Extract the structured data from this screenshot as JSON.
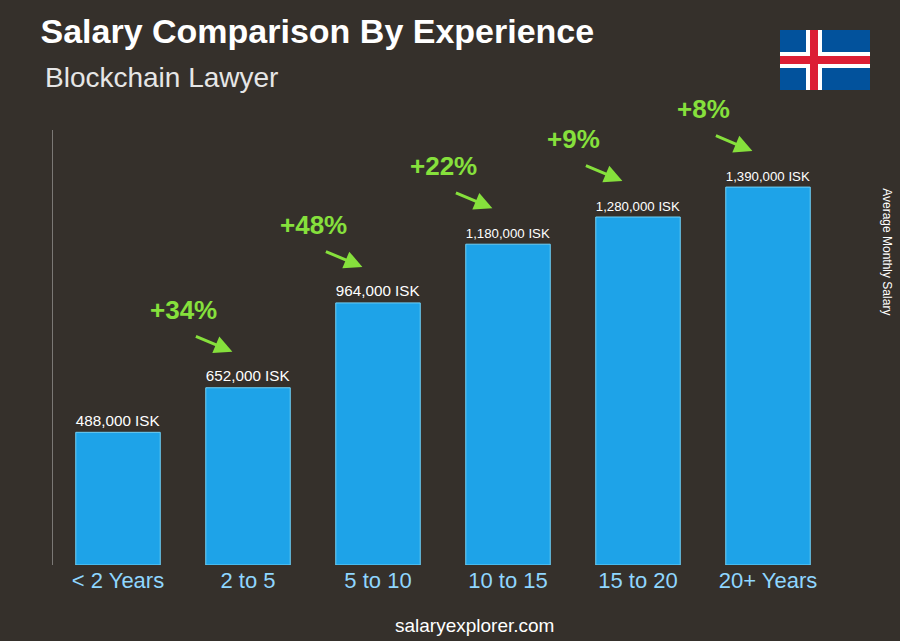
{
  "chart_data": {
    "type": "bar",
    "title": "Salary Comparison By Experience",
    "subtitle": "Blockchain Lawyer",
    "y_label": "Average Monthly Salary",
    "footer": "salaryexplorer.com",
    "categories": [
      "< 2 Years",
      "2 to 5",
      "5 to 10",
      "10 to 15",
      "15 to 20",
      "20+ Years"
    ],
    "values": [
      488000,
      652000,
      964000,
      1180000,
      1280000,
      1390000
    ],
    "value_labels": [
      "488,000 ISK",
      "652,000 ISK",
      "964,000 ISK",
      "1,180,000 ISK",
      "1,280,000 ISK",
      "1,390,000 ISK"
    ],
    "annotations": [
      "+34%",
      "+48%",
      "+22%",
      "+9%",
      "+8%"
    ],
    "color": "#1ea3e8",
    "ylim": [
      0,
      1600000
    ],
    "data_labels": true,
    "tick_labels": "x",
    "grid": false
  }
}
